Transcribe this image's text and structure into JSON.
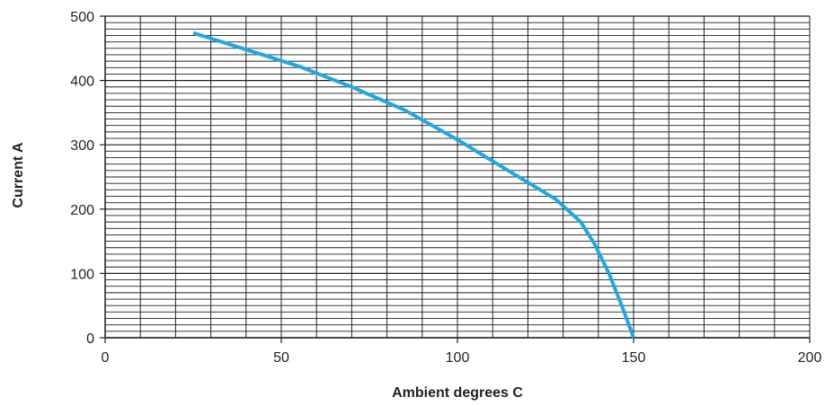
{
  "chart_data": {
    "type": "line",
    "title": "",
    "xlabel": "Ambient degrees C",
    "ylabel": "Current A",
    "xlim": [
      0,
      200
    ],
    "ylim": [
      0,
      500
    ],
    "x_ticks": [
      "0",
      "50",
      "100",
      "150",
      "200"
    ],
    "y_ticks": [
      "0",
      "100",
      "200",
      "300",
      "400",
      "500"
    ],
    "grid": true,
    "line_color": "#1fa9e1",
    "grid_color": "#231f20",
    "series": [
      {
        "x": [
          25,
          40,
          55,
          70,
          85,
          100,
          115,
          128,
          135,
          139,
          143,
          147,
          150
        ],
        "y": [
          474,
          448,
          422,
          390,
          354,
          308,
          258,
          215,
          180,
          145,
          100,
          45,
          0
        ]
      }
    ]
  }
}
